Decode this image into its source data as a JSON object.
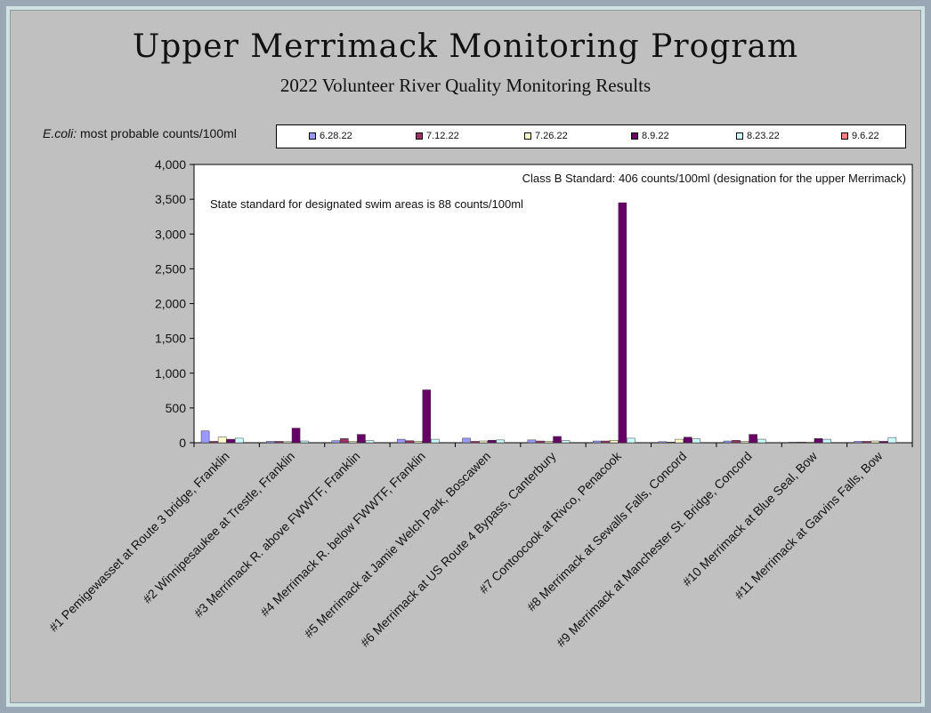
{
  "page": {
    "title": "Upper Merrimack Monitoring Program",
    "subtitle": "2022 Volunteer River Quality Monitoring Results"
  },
  "chart_data": {
    "type": "bar",
    "title": "Upper Merrimack Monitoring Program",
    "subtitle": "2022 Volunteer River Quality Monitoring Results",
    "ylabel_italic": "E.coli:",
    "ylabel": "most probable counts/100ml",
    "xlabel": "",
    "ylim": [
      0,
      4000
    ],
    "yticks": [
      "0",
      "500",
      "1,000",
      "1,500",
      "2,000",
      "2,500",
      "3,000",
      "3,500",
      "4,000"
    ],
    "ytick_values": [
      0,
      500,
      1000,
      1500,
      2000,
      2500,
      3000,
      3500,
      4000
    ],
    "grid": false,
    "legend_position": "top",
    "annotations": [
      "Class B Standard: 406 counts/100ml (designation for the upper Merrimack)",
      "State standard for designated swim areas is 88 counts/100ml"
    ],
    "categories": [
      "#1 Pemigewasset at Route 3 bridge, Franklin",
      "#2 Winnipesaukee at Trestle, Franklin",
      "#3 Merrimack R. above FWWTF, Franklin",
      "#4 Merrimack R. below FWWTF, Franklin",
      "#5 Merrimack at Jamie Welch Park, Boscawen",
      "#6 Merrimack at US Route 4 Bypass, Canterbury",
      "#7 Contoocook at Rivco, Penacook",
      "#8 Merrimack at Sewalls Falls, Concord",
      "#9 Merrimack at Manchester St. Bridge, Concord",
      "#10 Merrimack at Blue Seal, Bow",
      "#11 Merrimack at Garvins Falls, Bow"
    ],
    "series": [
      {
        "name": "6.28.22",
        "color": "#9999ff",
        "values": [
          170,
          20,
          30,
          50,
          65,
          40,
          25,
          15,
          25,
          10,
          20
        ]
      },
      {
        "name": "7.12.22",
        "color": "#993366",
        "values": [
          20,
          20,
          60,
          30,
          20,
          25,
          25,
          10,
          35,
          10,
          20
        ]
      },
      {
        "name": "7.26.22",
        "color": "#ffffcc",
        "values": [
          80,
          15,
          20,
          20,
          25,
          20,
          35,
          50,
          20,
          10,
          25
        ]
      },
      {
        "name": "8.9.22",
        "color": "#660066",
        "values": [
          50,
          210,
          120,
          760,
          35,
          90,
          3450,
          80,
          120,
          60,
          20
        ]
      },
      {
        "name": "8.23.22",
        "color": "#ccffff",
        "values": [
          65,
          25,
          30,
          50,
          40,
          30,
          65,
          55,
          50,
          50,
          75
        ]
      },
      {
        "name": "9.6.22",
        "color": "#ff8080",
        "values": [
          0,
          0,
          0,
          0,
          0,
          0,
          0,
          0,
          0,
          0,
          0
        ]
      }
    ]
  }
}
